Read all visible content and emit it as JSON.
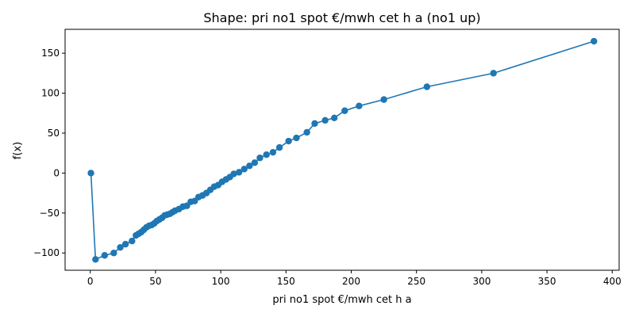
{
  "chart_data": {
    "type": "line",
    "title": "Shape: pri no1 spot €/mwh cet h a (no1 up)",
    "xlabel": "pri no1 spot €/mwh cet h a",
    "ylabel": "f(x)",
    "xlim": [
      -19.3,
      405.3
    ],
    "ylim": [
      -121.6,
      179.9
    ],
    "xticks": [
      0,
      50,
      100,
      150,
      200,
      250,
      300,
      350,
      400
    ],
    "yticks": [
      -100,
      -50,
      0,
      50,
      100,
      150
    ],
    "xtick_labels": [
      "0",
      "50",
      "100",
      "150",
      "200",
      "250",
      "300",
      "350",
      "400"
    ],
    "ytick_labels": [
      "−100",
      "−50",
      "0",
      "50",
      "100",
      "150"
    ],
    "grid": false,
    "series": [
      {
        "color": "#1f77b4",
        "marker": "circle",
        "points": [
          [
            0.5,
            0
          ],
          [
            4,
            -108
          ],
          [
            11,
            -103
          ],
          [
            18,
            -100
          ],
          [
            23,
            -93
          ],
          [
            27,
            -89
          ],
          [
            32,
            -85
          ],
          [
            35,
            -78
          ],
          [
            37,
            -76
          ],
          [
            39,
            -74
          ],
          [
            41,
            -71
          ],
          [
            43,
            -68
          ],
          [
            45,
            -66
          ],
          [
            47,
            -65
          ],
          [
            49,
            -63
          ],
          [
            51,
            -60
          ],
          [
            53,
            -58
          ],
          [
            55,
            -56
          ],
          [
            57,
            -53
          ],
          [
            59,
            -52
          ],
          [
            61,
            -51
          ],
          [
            63,
            -49
          ],
          [
            65,
            -47
          ],
          [
            68,
            -45
          ],
          [
            71,
            -42
          ],
          [
            74,
            -41
          ],
          [
            77,
            -36
          ],
          [
            80,
            -35
          ],
          [
            83,
            -30
          ],
          [
            86,
            -28
          ],
          [
            89,
            -25
          ],
          [
            92,
            -21
          ],
          [
            95,
            -17
          ],
          [
            98,
            -15
          ],
          [
            101,
            -11
          ],
          [
            104,
            -8
          ],
          [
            107,
            -5
          ],
          [
            110,
            -1
          ],
          [
            114,
            1
          ],
          [
            118,
            5
          ],
          [
            122,
            9
          ],
          [
            126,
            13
          ],
          [
            130,
            19
          ],
          [
            135,
            23
          ],
          [
            140,
            26
          ],
          [
            145,
            32
          ],
          [
            152,
            40
          ],
          [
            158,
            44
          ],
          [
            166,
            51
          ],
          [
            172,
            62
          ],
          [
            180,
            66
          ],
          [
            187,
            69
          ],
          [
            195,
            78
          ],
          [
            206,
            84
          ],
          [
            225,
            92
          ],
          [
            258,
            108
          ],
          [
            309,
            125
          ],
          [
            386,
            165
          ]
        ]
      }
    ]
  }
}
